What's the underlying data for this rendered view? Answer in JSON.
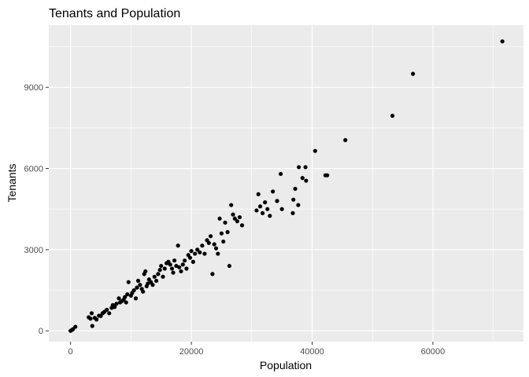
{
  "chart_data": {
    "type": "scatter",
    "title": "Tenants  and Population",
    "xlabel": "Population",
    "ylabel": "Tenants",
    "xlim": [
      -3600,
      75000
    ],
    "ylim": [
      -400,
      11300
    ],
    "xticks": [
      0,
      20000,
      40000,
      60000
    ],
    "yticks": [
      0,
      3000,
      6000,
      9000
    ],
    "xtick_labels": [
      "0",
      "20000",
      "40000",
      "60000"
    ],
    "ytick_labels": [
      "0",
      "3000",
      "6000",
      "9000"
    ],
    "x_minor": [
      10000,
      30000,
      50000,
      70000
    ],
    "y_minor": [
      1500,
      4500,
      7500,
      10500
    ],
    "grid": true,
    "colors": {
      "panel": "#ebebeb",
      "grid": "#ffffff",
      "point": "#000000",
      "tick": "#333333"
    },
    "series": [
      {
        "points": [
          [
            0,
            0
          ],
          [
            200,
            30
          ],
          [
            400,
            60
          ],
          [
            800,
            150
          ],
          [
            3000,
            500
          ],
          [
            3300,
            450
          ],
          [
            3500,
            650
          ],
          [
            3600,
            180
          ],
          [
            4000,
            480
          ],
          [
            4300,
            420
          ],
          [
            4700,
            560
          ],
          [
            5000,
            550
          ],
          [
            5300,
            650
          ],
          [
            5600,
            700
          ],
          [
            6000,
            780
          ],
          [
            6400,
            650
          ],
          [
            6800,
            850
          ],
          [
            7000,
            950
          ],
          [
            7300,
            880
          ],
          [
            7600,
            1000
          ],
          [
            8000,
            1200
          ],
          [
            8200,
            1050
          ],
          [
            8500,
            1100
          ],
          [
            8800,
            1150
          ],
          [
            9000,
            1250
          ],
          [
            9200,
            1050
          ],
          [
            9400,
            1350
          ],
          [
            9600,
            1800
          ],
          [
            10000,
            1300
          ],
          [
            10200,
            1400
          ],
          [
            10500,
            1500
          ],
          [
            10800,
            1200
          ],
          [
            11000,
            1600
          ],
          [
            11200,
            1850
          ],
          [
            11500,
            1700
          ],
          [
            11800,
            1550
          ],
          [
            12000,
            1450
          ],
          [
            12200,
            2100
          ],
          [
            12400,
            2200
          ],
          [
            12600,
            1650
          ],
          [
            12800,
            1750
          ],
          [
            13000,
            1900
          ],
          [
            13300,
            1800
          ],
          [
            13600,
            1700
          ],
          [
            13900,
            2000
          ],
          [
            14200,
            1850
          ],
          [
            14500,
            2100
          ],
          [
            14800,
            2250
          ],
          [
            15000,
            2400
          ],
          [
            15300,
            2000
          ],
          [
            15600,
            2300
          ],
          [
            15900,
            2500
          ],
          [
            16200,
            2550
          ],
          [
            16500,
            2450
          ],
          [
            16800,
            2300
          ],
          [
            17000,
            2150
          ],
          [
            17200,
            2600
          ],
          [
            17500,
            2400
          ],
          [
            17800,
            3150
          ],
          [
            18000,
            2350
          ],
          [
            18300,
            2200
          ],
          [
            18600,
            2450
          ],
          [
            18900,
            2600
          ],
          [
            19200,
            2300
          ],
          [
            19500,
            2800
          ],
          [
            19800,
            2700
          ],
          [
            20000,
            2950
          ],
          [
            20300,
            2550
          ],
          [
            20600,
            2850
          ],
          [
            21000,
            3000
          ],
          [
            21400,
            2900
          ],
          [
            21800,
            3150
          ],
          [
            22200,
            2850
          ],
          [
            22600,
            3350
          ],
          [
            22900,
            3250
          ],
          [
            23200,
            3500
          ],
          [
            23500,
            2100
          ],
          [
            23800,
            3200
          ],
          [
            24100,
            3050
          ],
          [
            24400,
            2850
          ],
          [
            24700,
            4150
          ],
          [
            25000,
            3600
          ],
          [
            25300,
            3300
          ],
          [
            25600,
            4000
          ],
          [
            26000,
            3650
          ],
          [
            26300,
            2400
          ],
          [
            26600,
            4650
          ],
          [
            26900,
            4300
          ],
          [
            27200,
            4150
          ],
          [
            27600,
            4050
          ],
          [
            28000,
            4200
          ],
          [
            28400,
            3900
          ],
          [
            30800,
            4450
          ],
          [
            31100,
            5050
          ],
          [
            31400,
            4600
          ],
          [
            31800,
            4350
          ],
          [
            32200,
            4750
          ],
          [
            32600,
            4500
          ],
          [
            33000,
            4250
          ],
          [
            33500,
            5150
          ],
          [
            34200,
            4800
          ],
          [
            34800,
            5800
          ],
          [
            35000,
            4500
          ],
          [
            36800,
            4350
          ],
          [
            36900,
            4850
          ],
          [
            37200,
            5250
          ],
          [
            37700,
            4650
          ],
          [
            37800,
            6050
          ],
          [
            38400,
            5650
          ],
          [
            38900,
            6050
          ],
          [
            39000,
            5550
          ],
          [
            40500,
            6650
          ],
          [
            42200,
            5750
          ],
          [
            42500,
            5750
          ],
          [
            45500,
            7050
          ],
          [
            53300,
            7950
          ],
          [
            56700,
            9500
          ],
          [
            71500,
            10700
          ]
        ]
      }
    ]
  }
}
